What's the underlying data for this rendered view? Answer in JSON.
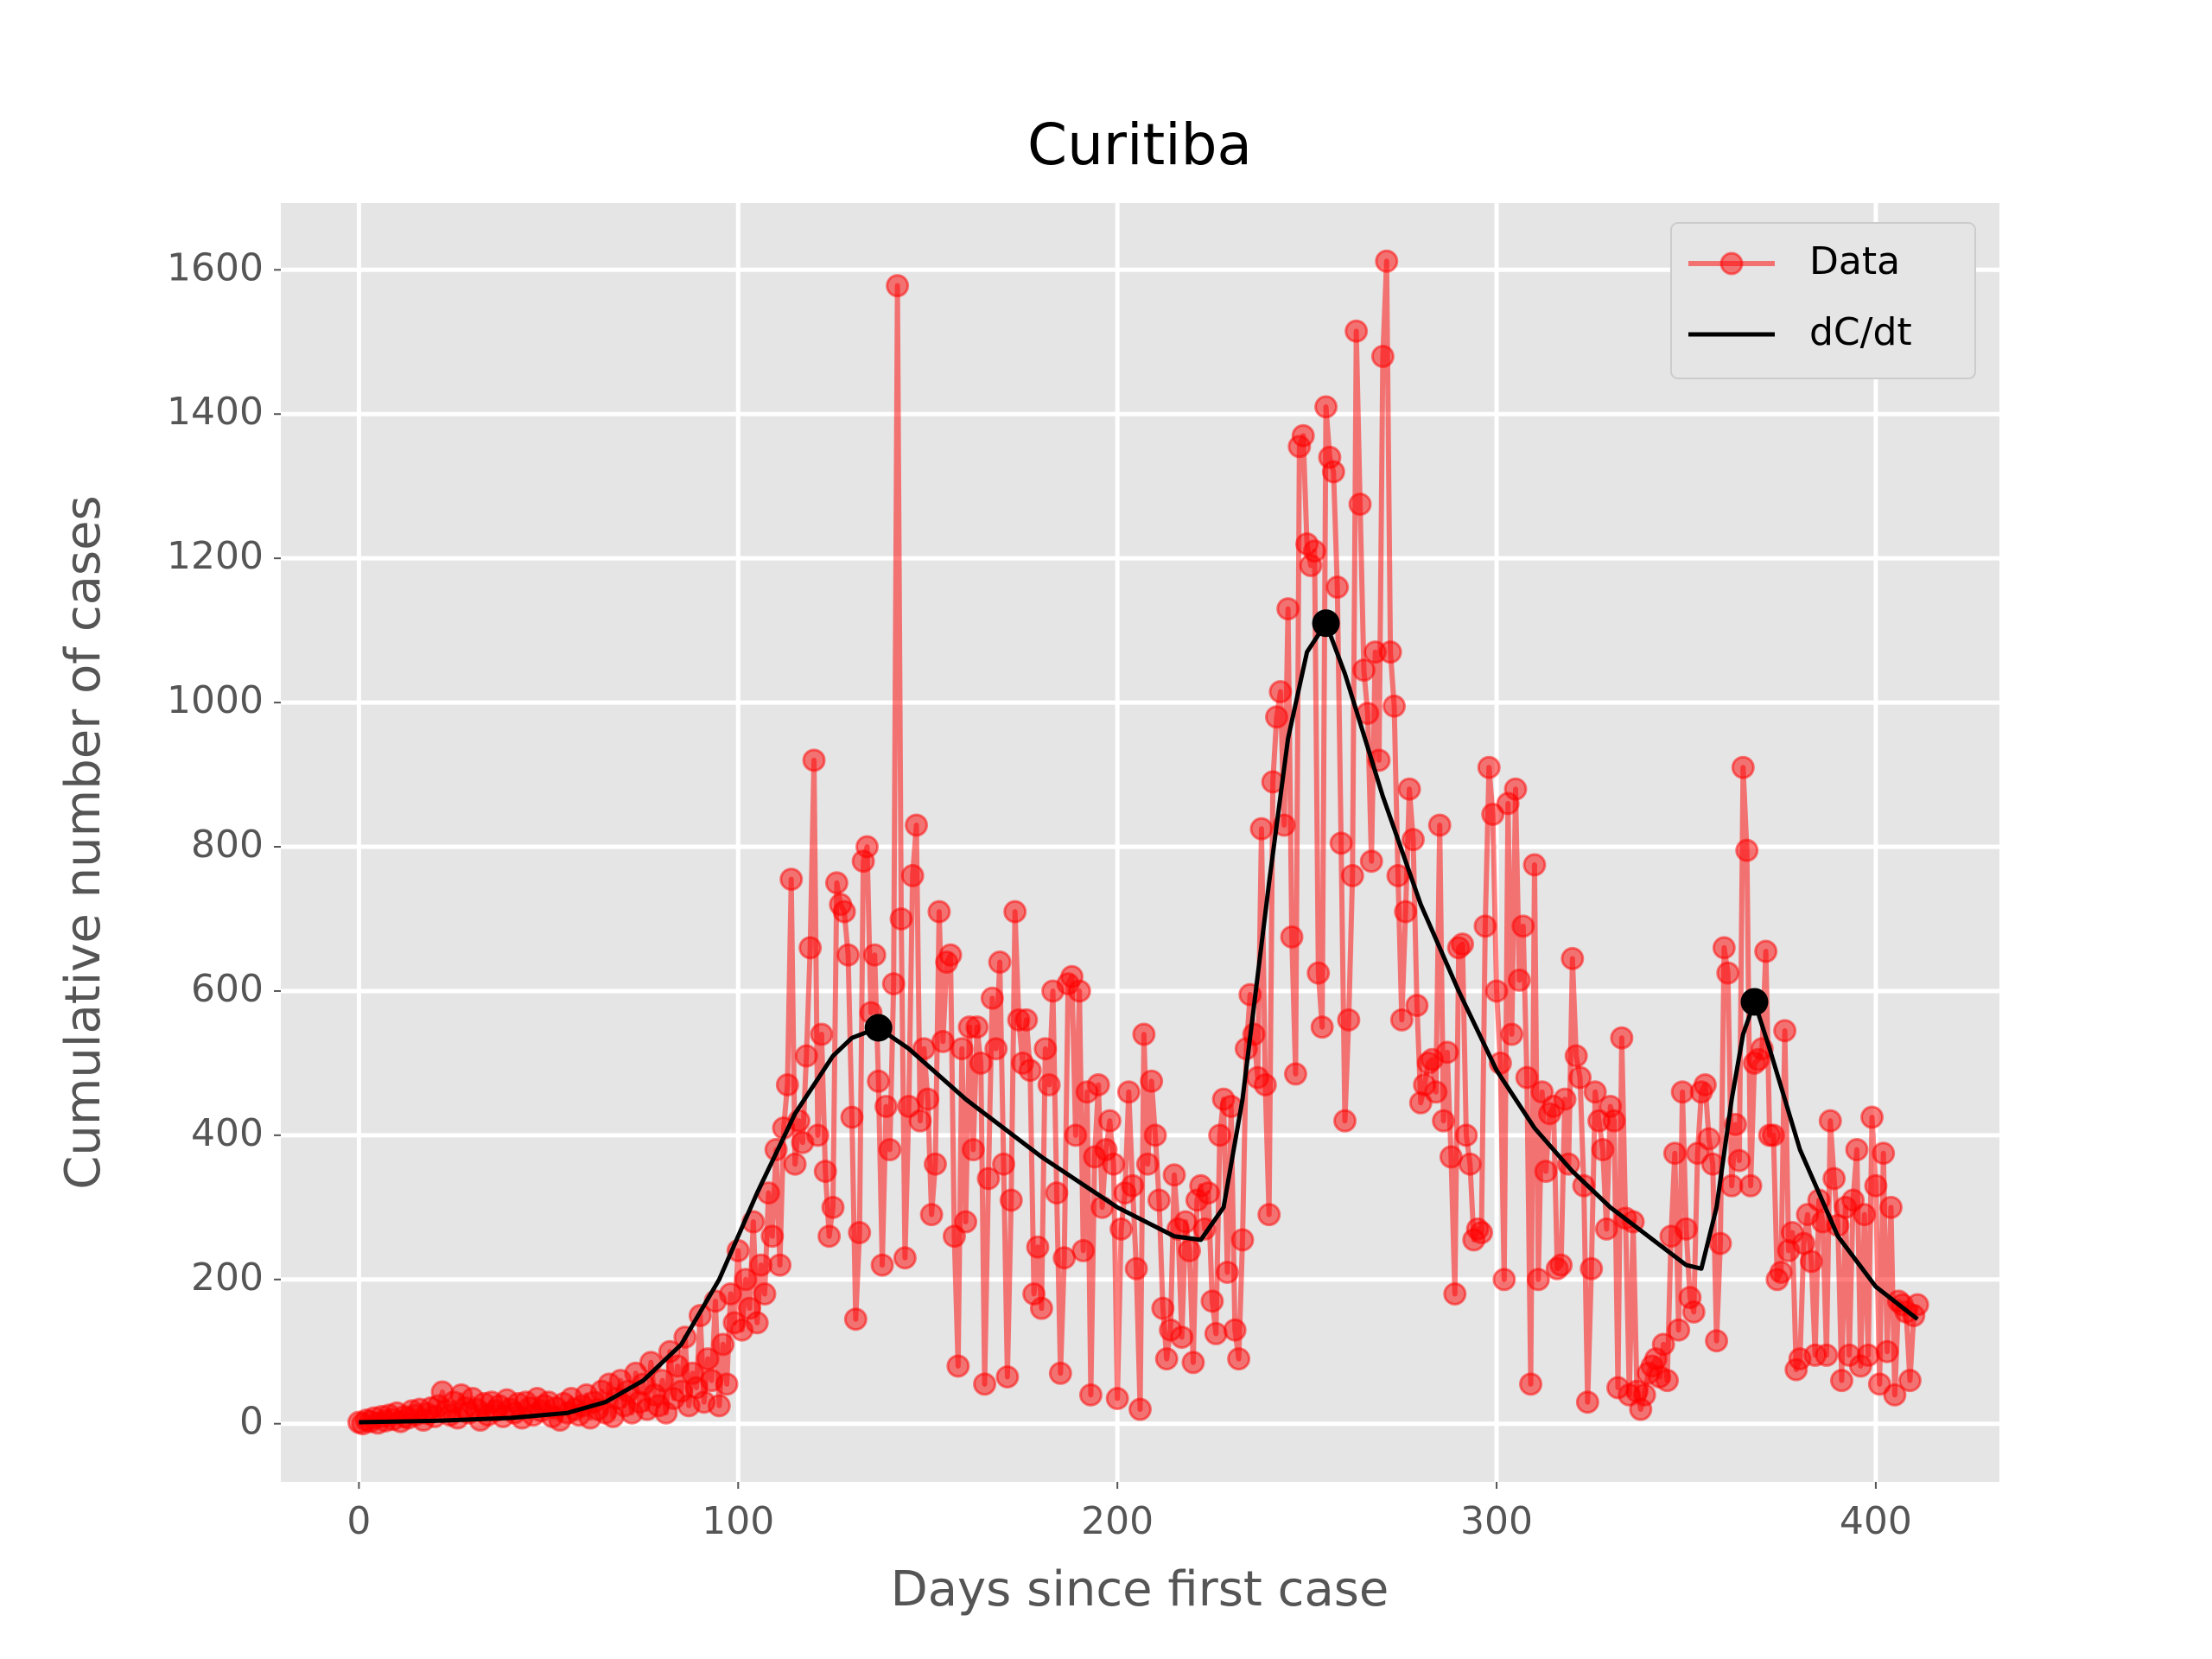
{
  "chart_data": {
    "type": "line",
    "title": "Curitiba",
    "x_label": "Days since first case",
    "y_label": "Cumulative number of cases",
    "xlim": [
      -20.6,
      432.6
    ],
    "ylim": [
      -80.6,
      1692.6
    ],
    "xticks": [
      0,
      100,
      200,
      300,
      400
    ],
    "yticks": [
      0,
      200,
      400,
      600,
      800,
      1000,
      1200,
      1400,
      1600
    ],
    "grid": true,
    "legend": "upper right",
    "series": [
      {
        "name": "Data",
        "color": "#ff0000",
        "markers": true,
        "x": [
          0,
          1,
          2,
          3,
          4,
          5,
          6,
          7,
          8,
          9,
          10,
          11,
          12,
          13,
          14,
          15,
          16,
          17,
          18,
          19,
          20,
          21,
          22,
          23,
          24,
          25,
          26,
          27,
          28,
          29,
          30,
          31,
          32,
          33,
          34,
          35,
          36,
          37,
          38,
          39,
          40,
          41,
          42,
          43,
          44,
          45,
          46,
          47,
          48,
          49,
          50,
          51,
          52,
          53,
          54,
          55,
          56,
          57,
          58,
          59,
          60,
          61,
          62,
          63,
          64,
          65,
          66,
          67,
          68,
          69,
          70,
          71,
          72,
          73,
          74,
          75,
          76,
          77,
          78,
          79,
          80,
          81,
          82,
          83,
          84,
          85,
          86,
          87,
          88,
          89,
          90,
          91,
          92,
          93,
          94,
          95,
          96,
          97,
          98,
          99,
          100,
          101,
          102,
          103,
          104,
          105,
          106,
          107,
          108,
          109,
          110,
          111,
          112,
          113,
          114,
          115,
          116,
          117,
          118,
          119,
          120,
          121,
          122,
          123,
          124,
          125,
          126,
          127,
          128,
          129,
          130,
          131,
          132,
          133,
          134,
          135,
          136,
          137,
          138,
          139,
          140,
          141,
          142,
          143,
          144,
          145,
          146,
          147,
          148,
          149,
          150,
          151,
          152,
          153,
          154,
          155,
          156,
          157,
          158,
          159,
          160,
          161,
          162,
          163,
          164,
          165,
          166,
          167,
          168,
          169,
          170,
          171,
          172,
          173,
          174,
          175,
          176,
          177,
          178,
          179,
          180,
          181,
          182,
          183,
          184,
          185,
          186,
          187,
          188,
          189,
          190,
          191,
          192,
          193,
          194,
          195,
          196,
          197,
          198,
          199,
          200,
          201,
          202,
          203,
          204,
          205,
          206,
          207,
          208,
          209,
          210,
          211,
          212,
          213,
          214,
          215,
          216,
          217,
          218,
          219,
          220,
          221,
          222,
          223,
          224,
          225,
          226,
          227,
          228,
          229,
          230,
          231,
          232,
          233,
          234,
          235,
          236,
          237,
          238,
          239,
          240,
          241,
          242,
          243,
          244,
          245,
          246,
          247,
          248,
          249,
          250,
          251,
          252,
          253,
          254,
          255,
          256,
          257,
          258,
          259,
          260,
          261,
          262,
          263,
          264,
          265,
          266,
          267,
          268,
          269,
          270,
          271,
          272,
          273,
          274,
          275,
          276,
          277,
          278,
          279,
          280,
          281,
          282,
          283,
          284,
          285,
          286,
          287,
          288,
          289,
          290,
          291,
          292,
          293,
          294,
          295,
          296,
          297,
          298,
          299,
          300,
          301,
          302,
          303,
          304,
          305,
          306,
          307,
          308,
          309,
          310,
          311,
          312,
          313,
          314,
          315,
          316,
          317,
          318,
          319,
          320,
          321,
          322,
          323,
          324,
          325,
          326,
          327,
          328,
          329,
          330,
          331,
          332,
          333,
          334,
          335,
          336,
          337,
          338,
          339,
          340,
          341,
          342,
          343,
          344,
          345,
          346,
          347,
          348,
          349,
          350,
          351,
          352,
          353,
          354,
          355,
          356,
          357,
          358,
          359,
          360,
          361,
          362,
          363,
          364,
          365,
          366,
          367,
          368,
          369,
          370,
          371,
          372,
          373,
          374,
          375,
          376,
          377,
          378,
          379,
          380,
          381,
          382,
          383,
          384,
          385,
          386,
          387,
          388,
          389,
          390,
          391,
          392,
          393,
          394,
          395,
          396,
          397,
          398,
          399,
          400,
          401,
          402,
          403,
          404,
          405,
          406,
          407,
          408,
          409,
          410,
          411
        ],
        "values": [
          2,
          0,
          5,
          3,
          8,
          1,
          10,
          4,
          12,
          6,
          15,
          3,
          10,
          8,
          18,
          12,
          20,
          5,
          14,
          22,
          10,
          25,
          44,
          18,
          12,
          30,
          8,
          40,
          22,
          15,
          35,
          20,
          5,
          28,
          12,
          30,
          18,
          25,
          10,
          33,
          20,
          15,
          28,
          8,
          30,
          22,
          12,
          35,
          18,
          25,
          30,
          10,
          22,
          5,
          28,
          15,
          35,
          20,
          12,
          25,
          40,
          8,
          30,
          20,
          45,
          15,
          55,
          10,
          35,
          60,
          25,
          45,
          15,
          70,
          30,
          55,
          20,
          85,
          40,
          25,
          60,
          15,
          100,
          35,
          80,
          45,
          120,
          25,
          70,
          50,
          150,
          30,
          90,
          60,
          170,
          25,
          110,
          55,
          180,
          140,
          240,
          130,
          200,
          160,
          280,
          140,
          220,
          180,
          320,
          260,
          380,
          220,
          410,
          470,
          755,
          360,
          420,
          390,
          510,
          660,
          920,
          400,
          540,
          350,
          260,
          300,
          750,
          720,
          710,
          650,
          425,
          145,
          265,
          780,
          800,
          570,
          650,
          475,
          220,
          440,
          380,
          610,
          1578,
          700,
          230,
          440,
          760,
          830,
          420,
          520,
          450,
          290,
          360,
          710,
          530,
          640,
          650,
          260,
          80,
          520,
          280,
          550,
          380,
          550,
          500,
          55,
          340,
          590,
          520,
          640,
          360,
          65,
          310,
          710,
          560,
          500,
          560,
          490,
          180,
          245,
          160,
          520,
          470,
          600,
          320,
          70,
          230,
          610,
          620,
          400,
          600,
          240,
          460,
          40,
          370,
          470,
          300,
          380,
          420,
          360,
          35,
          270,
          320,
          460,
          330,
          215,
          20,
          540,
          360,
          475,
          400,
          310,
          160,
          90,
          130,
          345,
          270,
          120,
          280,
          240,
          85,
          310,
          330,
          270,
          320,
          170,
          125,
          400,
          450,
          210,
          440,
          130,
          90,
          255,
          520,
          595,
          540,
          480,
          825,
          470,
          290,
          890,
          980,
          1015,
          830,
          1130,
          675,
          485,
          1355,
          1370,
          1220,
          1190,
          1210,
          625,
          550,
          1410,
          1340,
          1320,
          1160,
          805,
          420,
          560,
          760,
          1515,
          1275,
          1045,
          985,
          780,
          1070,
          920,
          1480,
          1612,
          1070,
          995,
          760,
          560,
          710,
          880,
          810,
          580,
          445,
          470,
          500,
          505,
          460,
          830,
          420,
          515,
          370,
          180,
          660,
          665,
          400,
          360,
          255,
          270,
          265,
          690,
          910,
          845,
          600,
          500,
          200,
          860,
          540,
          880,
          615,
          690,
          480,
          55,
          775,
          200,
          460,
          350,
          430,
          440,
          215,
          220,
          450,
          360,
          645,
          510,
          480,
          330,
          30,
          215,
          460,
          420,
          380,
          270,
          440,
          420,
          50,
          535,
          285,
          40,
          280,
          45,
          20,
          40,
          70,
          80,
          90,
          65,
          110,
          60,
          260,
          375,
          130,
          460,
          270,
          175,
          155,
          375,
          460,
          470,
          395,
          360,
          115,
          250,
          660,
          625,
          330,
          415,
          365,
          910,
          795,
          330,
          500,
          505,
          520,
          655,
          400,
          400,
          200,
          210,
          545,
          240,
          265,
          75,
          90,
          250,
          290,
          225,
          95,
          310,
          280,
          95,
          420,
          340,
          275,
          60,
          300,
          95,
          310,
          380,
          80,
          290,
          95,
          425,
          330,
          55,
          375,
          100,
          300,
          40,
          170,
          165,
          155,
          60,
          150,
          165
        ]
      },
      {
        "name": "dC/dt",
        "color": "#000000",
        "markers": false,
        "x": [
          0,
          20,
          40,
          55,
          65,
          75,
          85,
          95,
          105,
          115,
          125,
          130,
          137,
          145,
          160,
          180,
          200,
          215,
          222,
          228,
          233,
          240,
          245,
          250,
          255,
          260,
          270,
          280,
          290,
          300,
          310,
          320,
          330,
          340,
          350,
          354,
          358,
          362,
          365,
          368,
          372,
          380,
          390,
          400,
          411
        ],
        "values": [
          2,
          4,
          8,
          15,
          30,
          60,
          110,
          200,
          320,
          430,
          510,
          535,
          549,
          520,
          450,
          370,
          300,
          260,
          255,
          300,
          450,
          750,
          950,
          1070,
          1110,
          1040,
          870,
          720,
          600,
          490,
          410,
          350,
          300,
          260,
          220,
          215,
          300,
          450,
          540,
          585,
          520,
          380,
          260,
          190,
          145
        ]
      }
    ],
    "peaks": {
      "color": "#000000",
      "x": [
        137,
        255,
        368
      ],
      "values": [
        549,
        1110,
        585
      ]
    }
  }
}
